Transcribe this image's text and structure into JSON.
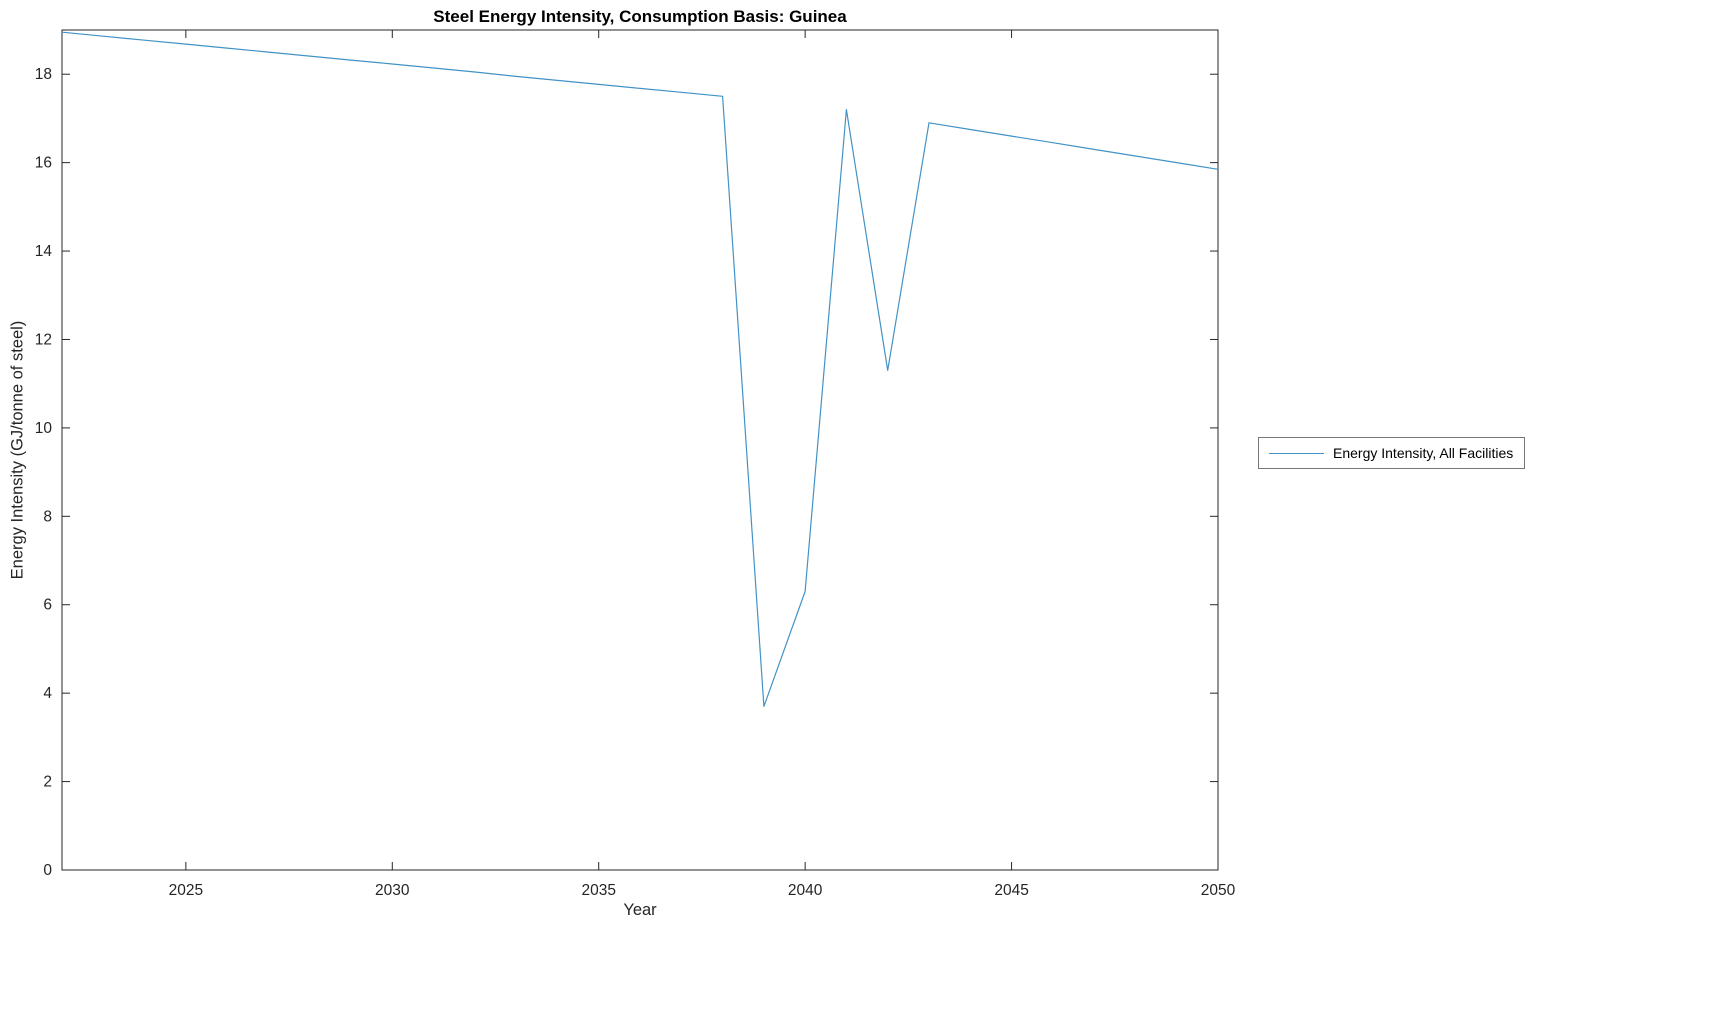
{
  "chart_data": {
    "type": "line",
    "title": "Steel Energy Intensity, Consumption Basis: Guinea",
    "xlabel": "Year",
    "ylabel": "Energy Intensity (GJ/tonne of steel)",
    "xlim": [
      2022,
      2050
    ],
    "ylim": [
      0,
      19
    ],
    "xticks": [
      2025,
      2030,
      2035,
      2040,
      2045,
      2050
    ],
    "yticks": [
      0,
      2,
      4,
      6,
      8,
      10,
      12,
      14,
      16,
      18
    ],
    "grid": false,
    "legend_position": "right-outside",
    "axis_color": "#262626",
    "line_color": "#4292c6",
    "series": [
      {
        "name": "Energy Intensity, All Facilities",
        "x": [
          2022,
          2023,
          2024,
          2025,
          2026,
          2027,
          2028,
          2029,
          2030,
          2031,
          2032,
          2033,
          2034,
          2035,
          2036,
          2037,
          2038,
          2039,
          2040,
          2041,
          2042,
          2043,
          2044,
          2045,
          2046,
          2047,
          2048,
          2049,
          2050
        ],
        "y": [
          18.95,
          18.86,
          18.77,
          18.68,
          18.59,
          18.5,
          18.41,
          18.32,
          18.23,
          18.14,
          18.05,
          17.95,
          17.86,
          17.77,
          17.68,
          17.59,
          17.5,
          3.7,
          6.3,
          17.2,
          11.3,
          16.9,
          16.75,
          16.6,
          16.45,
          16.3,
          16.15,
          16.0,
          15.85
        ]
      }
    ]
  }
}
